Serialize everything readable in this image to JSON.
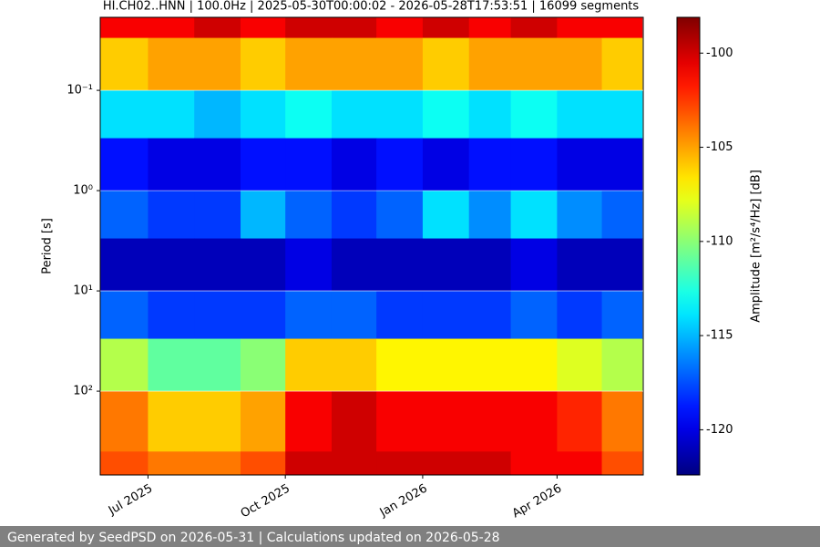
{
  "chart_data": {
    "type": "spectrogram",
    "title": "HI.CH02..HNN | 100.0Hz | 2025-05-30T00:00:02 - 2026-05-28T17:53:51 | 16099 segments",
    "y_label": "Period [s]",
    "colorbar_label": "Amplitude [m²/s⁴/Hz] [dB]",
    "footer": "Generated by SeedPSD on 2026-05-31 | Calculations updated on 2026-05-28",
    "y_log": true,
    "grid": true,
    "colormap": "jet",
    "xlim": [
      "2025-05-30T00:00:02",
      "2026-05-28T17:53:51"
    ],
    "xticks": [
      {
        "value": "2025-07-01",
        "label": "Jul 2025"
      },
      {
        "value": "2025-10-01",
        "label": "Oct 2025"
      },
      {
        "value": "2026-01-01",
        "label": "Jan 2026"
      },
      {
        "value": "2026-04-01",
        "label": "Apr 2026"
      }
    ],
    "ylim": [
      685,
      0.0187
    ],
    "yticks": [
      {
        "value": 0.1,
        "label": "10⁻¹"
      },
      {
        "value": 1,
        "label": "10⁰"
      },
      {
        "value": 10,
        "label": "10¹"
      },
      {
        "value": 100,
        "label": "10²"
      }
    ],
    "clim": [
      -122.4,
      -98.1
    ],
    "cticks": [
      -100,
      -105,
      -110,
      -115,
      -120
    ],
    "x": [
      "2025-05-30",
      "2025-07-01",
      "2025-08-01",
      "2025-09-01",
      "2025-10-01",
      "2025-11-01",
      "2025-12-01",
      "2026-01-01",
      "2026-02-01",
      "2026-03-01",
      "2026-04-01",
      "2026-05-01",
      "2026-05-28"
    ],
    "periods": [
      0.0187,
      0.03,
      0.1,
      0.3,
      1,
      3,
      10,
      30,
      100,
      400,
      685
    ],
    "z": [
      [
        -101,
        -101,
        -100,
        -101,
        -100,
        -100,
        -101,
        -100,
        -101,
        -100,
        -101,
        -101
      ],
      [
        -106,
        -105,
        -105,
        -106,
        -105,
        -105,
        -105,
        -106,
        -105,
        -105,
        -105,
        -106
      ],
      [
        -114,
        -114,
        -115,
        -114,
        -113,
        -114,
        -114,
        -113,
        -114,
        -113,
        -114,
        -114
      ],
      [
        -119,
        -120,
        -120,
        -119,
        -119,
        -120,
        -119,
        -120,
        -119,
        -119,
        -120,
        -120
      ],
      [
        -117,
        -118,
        -118,
        -115,
        -117,
        -118,
        -117,
        -114,
        -116,
        -114,
        -116,
        -117
      ],
      [
        -121,
        -121,
        -121,
        -121,
        -120,
        -121,
        -121,
        -121,
        -121,
        -120,
        -121,
        -121
      ],
      [
        -117,
        -118,
        -118,
        -118,
        -117,
        -117,
        -118,
        -118,
        -118,
        -117,
        -118,
        -117
      ],
      [
        -109,
        -111,
        -111,
        -110,
        -106,
        -106,
        -107,
        -107,
        -107,
        -107,
        -108,
        -109
      ],
      [
        -104,
        -106,
        -106,
        -105,
        -101,
        -100,
        -101,
        -101,
        -101,
        -101,
        -102,
        -104
      ],
      [
        -103,
        -104,
        -104,
        -103,
        -100,
        -100,
        -100,
        -100,
        -100,
        -101,
        -101,
        -103
      ]
    ]
  }
}
